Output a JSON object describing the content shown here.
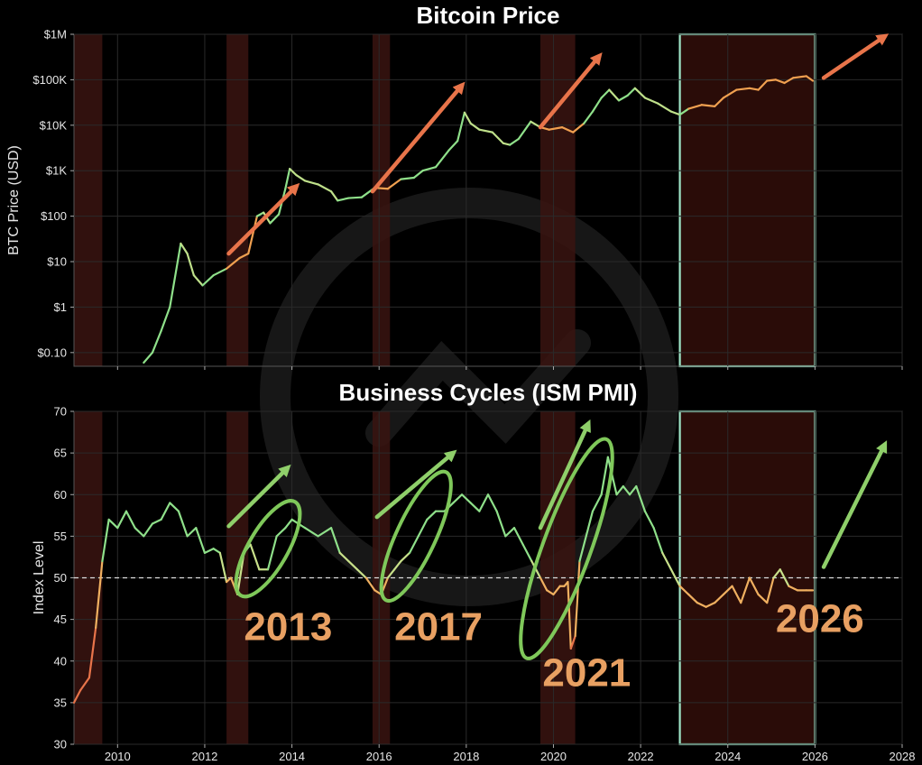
{
  "chart_data": [
    {
      "type": "line",
      "title": "Bitcoin Price",
      "ylabel": "BTC Price (USD)",
      "yscale": "log",
      "ylim": [
        0.05,
        1000000
      ],
      "xlim": [
        2009,
        2028
      ],
      "yticks": [
        {
          "value": 1000000,
          "label": "$1M"
        },
        {
          "value": 100000,
          "label": "$100K"
        },
        {
          "value": 10000,
          "label": "$10K"
        },
        {
          "value": 1000,
          "label": "$1K"
        },
        {
          "value": 100,
          "label": "$100"
        },
        {
          "value": 10,
          "label": "$10"
        },
        {
          "value": 1,
          "label": "$1"
        },
        {
          "value": 0.1,
          "label": "$0.10"
        }
      ],
      "shaded_periods": [
        [
          2009.0,
          2009.65
        ],
        [
          2012.5,
          2013.0
        ],
        [
          2015.85,
          2016.25
        ],
        [
          2019.7,
          2020.5
        ]
      ],
      "highlight_period": [
        2022.9,
        2026.0
      ],
      "colors": {
        "line_high": "#8fe08a",
        "line_low": "#f0a050",
        "arrow": "#e8744a",
        "shade": "#3a1410",
        "highlight_box": "#9fe6c8"
      },
      "arrows": [
        {
          "from": [
            2012.55,
            15
          ],
          "to": [
            2014.1,
            450
          ]
        },
        {
          "from": [
            2015.85,
            350
          ],
          "to": [
            2017.9,
            75000
          ]
        },
        {
          "from": [
            2019.7,
            9000
          ],
          "to": [
            2021.05,
            330000
          ]
        },
        {
          "from": [
            2026.2,
            110000
          ],
          "to": [
            2027.6,
            900000
          ]
        }
      ],
      "series": [
        {
          "x": [
            2010.6,
            2010.8,
            2011.0,
            2011.2,
            2011.45,
            2011.6,
            2011.75,
            2011.95,
            2012.2,
            2012.5,
            2012.8,
            2013.0,
            2013.2,
            2013.35,
            2013.5,
            2013.7,
            2013.85,
            2013.95,
            2014.1,
            2014.3,
            2014.6,
            2014.9,
            2015.05,
            2015.3,
            2015.6,
            2015.9,
            2016.2,
            2016.5,
            2016.8,
            2017.0,
            2017.3,
            2017.6,
            2017.8,
            2017.96,
            2018.1,
            2018.3,
            2018.6,
            2018.85,
            2019.0,
            2019.2,
            2019.48,
            2019.7,
            2019.9,
            2020.2,
            2020.45,
            2020.7,
            2020.9,
            2021.1,
            2021.28,
            2021.5,
            2021.7,
            2021.87,
            2022.1,
            2022.4,
            2022.7,
            2022.9,
            2023.1,
            2023.4,
            2023.7,
            2023.9,
            2024.2,
            2024.5,
            2024.7,
            2024.9,
            2025.1,
            2025.3,
            2025.5,
            2025.8,
            2025.95
          ],
          "y": [
            0.06,
            0.1,
            0.3,
            1.0,
            25,
            15,
            5,
            3,
            5,
            7,
            12,
            15,
            100,
            120,
            70,
            110,
            400,
            1100,
            800,
            600,
            500,
            350,
            220,
            250,
            260,
            420,
            400,
            650,
            700,
            1000,
            1200,
            2800,
            4500,
            19000,
            11000,
            8000,
            7000,
            4000,
            3700,
            5000,
            12000,
            9000,
            8000,
            9000,
            7000,
            11000,
            20000,
            40000,
            60000,
            35000,
            45000,
            65000,
            40000,
            30000,
            20000,
            17000,
            23000,
            28000,
            26000,
            40000,
            60000,
            65000,
            60000,
            95000,
            100000,
            85000,
            110000,
            120000,
            95000
          ]
        }
      ]
    },
    {
      "type": "line",
      "title": "Business Cycles (ISM PMI)",
      "ylabel": "Index Level",
      "ylim": [
        30,
        70
      ],
      "xlim": [
        2009,
        2028
      ],
      "yticks": [
        30,
        35,
        40,
        45,
        50,
        55,
        60,
        65,
        70
      ],
      "xticks": [
        2010,
        2012,
        2014,
        2016,
        2018,
        2020,
        2022,
        2024,
        2026,
        2028
      ],
      "reference_line": 50,
      "shaded_periods": [
        [
          2009.0,
          2009.65
        ],
        [
          2012.5,
          2013.0
        ],
        [
          2015.85,
          2016.25
        ],
        [
          2019.7,
          2020.5
        ]
      ],
      "highlight_period": [
        2022.9,
        2026.0
      ],
      "colors": {
        "line_high": "#8fe08a",
        "line_low": "#f0a050",
        "ellipse": "#7fc85a",
        "arrow": "#8fcf6a",
        "label": "#e8a062"
      },
      "annotations": [
        {
          "text": "2013",
          "x": 2012.9,
          "y": 42.5
        },
        {
          "text": "2017",
          "x": 2016.35,
          "y": 42.5
        },
        {
          "text": "2021",
          "x": 2019.75,
          "y": 37.0
        },
        {
          "text": "2026",
          "x": 2025.1,
          "y": 43.5
        }
      ],
      "ellipses": [
        {
          "cx": 2013.45,
          "cy": 53.5,
          "rx_years": 0.45,
          "ry_index": 6.5,
          "tilt": 30
        },
        {
          "cx": 2016.85,
          "cy": 55.0,
          "rx_years": 0.45,
          "ry_index": 8.5,
          "tilt": 25
        },
        {
          "cx": 2020.3,
          "cy": 53.5,
          "rx_years": 0.55,
          "ry_index": 14.0,
          "tilt": 20
        }
      ],
      "arrows": [
        {
          "from": [
            2012.55,
            56.2
          ],
          "to": [
            2013.9,
            63.2
          ]
        },
        {
          "from": [
            2015.95,
            57.3
          ],
          "to": [
            2017.7,
            65.0
          ]
        },
        {
          "from": [
            2019.7,
            56.0
          ],
          "to": [
            2020.8,
            68.5
          ]
        },
        {
          "from": [
            2026.2,
            51.3
          ],
          "to": [
            2027.6,
            66.0
          ]
        }
      ],
      "series": [
        {
          "x": [
            2009.0,
            2009.15,
            2009.35,
            2009.5,
            2009.65,
            2009.8,
            2010.0,
            2010.2,
            2010.4,
            2010.6,
            2010.8,
            2011.0,
            2011.2,
            2011.4,
            2011.6,
            2011.8,
            2012.0,
            2012.2,
            2012.35,
            2012.5,
            2012.6,
            2012.75,
            2012.9,
            2013.05,
            2013.25,
            2013.45,
            2013.65,
            2013.85,
            2014.0,
            2014.3,
            2014.6,
            2014.9,
            2015.1,
            2015.3,
            2015.5,
            2015.7,
            2015.9,
            2016.05,
            2016.2,
            2016.35,
            2016.5,
            2016.7,
            2016.9,
            2017.1,
            2017.3,
            2017.5,
            2017.7,
            2017.9,
            2018.1,
            2018.3,
            2018.5,
            2018.7,
            2018.9,
            2019.1,
            2019.3,
            2019.5,
            2019.7,
            2019.85,
            2020.0,
            2020.15,
            2020.25,
            2020.33,
            2020.4,
            2020.5,
            2020.6,
            2020.75,
            2020.9,
            2021.1,
            2021.25,
            2021.45,
            2021.6,
            2021.75,
            2021.9,
            2022.1,
            2022.3,
            2022.5,
            2022.7,
            2022.9,
            2023.1,
            2023.3,
            2023.5,
            2023.7,
            2023.9,
            2024.1,
            2024.3,
            2024.5,
            2024.7,
            2024.9,
            2025.05,
            2025.2,
            2025.4,
            2025.6,
            2025.8,
            2025.95
          ],
          "y": [
            35,
            36.5,
            38,
            44,
            52,
            57,
            56,
            58,
            56,
            55,
            56.5,
            57,
            59,
            58,
            55,
            56,
            53,
            53.5,
            53,
            49.5,
            50,
            48,
            53,
            54,
            51,
            51,
            55,
            56,
            57,
            56,
            55,
            56,
            53,
            52,
            51,
            50,
            48.5,
            48,
            50,
            51,
            52,
            53,
            55,
            57,
            58,
            58,
            59,
            60,
            59,
            58,
            60,
            58,
            55,
            56,
            54,
            52,
            50,
            48.5,
            48,
            49,
            49,
            49.5,
            41.5,
            43,
            52,
            55,
            58,
            60,
            64.5,
            60,
            61,
            60,
            61,
            58,
            56,
            53,
            51,
            49,
            48,
            47,
            46.5,
            47,
            48,
            49,
            47,
            50,
            48,
            47,
            50,
            51,
            49,
            48.5,
            48.5,
            48.5
          ]
        }
      ]
    }
  ]
}
